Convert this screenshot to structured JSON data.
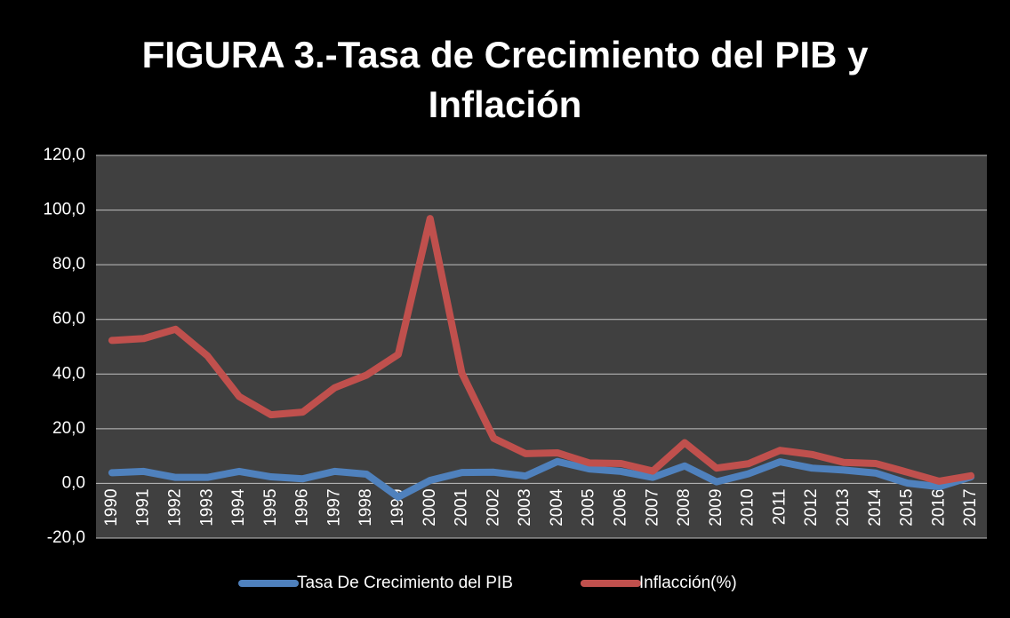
{
  "chart_data": {
    "type": "line",
    "title": "FIGURA 3.-Tasa de Crecimiento del PIB y Inflación",
    "categories": [
      "1990",
      "1991",
      "1992",
      "1993",
      "1994",
      "1995",
      "1996",
      "1997",
      "1998",
      "1999",
      "2000",
      "2001",
      "2002",
      "2003",
      "2004",
      "2005",
      "2006",
      "2007",
      "2008",
      "2009",
      "2010",
      "2011",
      "2012",
      "2013",
      "2014",
      "2015",
      "2016",
      "2017"
    ],
    "series": [
      {
        "name": "Tasa De Crecimiento del PIB",
        "color": "#4f81bd",
        "values": [
          3.9,
          4.4,
          2.2,
          2.2,
          4.4,
          2.4,
          1.7,
          4.4,
          3.4,
          -5.0,
          1.1,
          4.0,
          4.1,
          2.7,
          8.0,
          5.3,
          4.4,
          2.2,
          6.4,
          0.6,
          3.5,
          7.9,
          5.6,
          4.9,
          3.8,
          0.1,
          -1.2,
          2.4
        ]
      },
      {
        "name": "Inflacción(%)",
        "color": "#c0504d",
        "values": [
          52.3,
          53.0,
          56.4,
          46.7,
          31.8,
          25.1,
          26.1,
          35.0,
          39.6,
          47.2,
          96.9,
          40.3,
          16.5,
          10.9,
          11.2,
          7.5,
          7.3,
          4.5,
          14.9,
          5.6,
          7.2,
          12.1,
          10.6,
          7.7,
          7.3,
          4.1,
          0.8,
          2.8
        ]
      }
    ],
    "ylim": [
      -20,
      120
    ],
    "yticks": [
      {
        "value": -20,
        "label": "-20,0"
      },
      {
        "value": 0,
        "label": "0,0"
      },
      {
        "value": 20,
        "label": "20,0"
      },
      {
        "value": 40,
        "label": "40,0"
      },
      {
        "value": 60,
        "label": "60,0"
      },
      {
        "value": 80,
        "label": "80,0"
      },
      {
        "value": 100,
        "label": "100,0"
      },
      {
        "value": 120,
        "label": "120,0"
      }
    ],
    "grid": true,
    "legend": "bottom"
  }
}
